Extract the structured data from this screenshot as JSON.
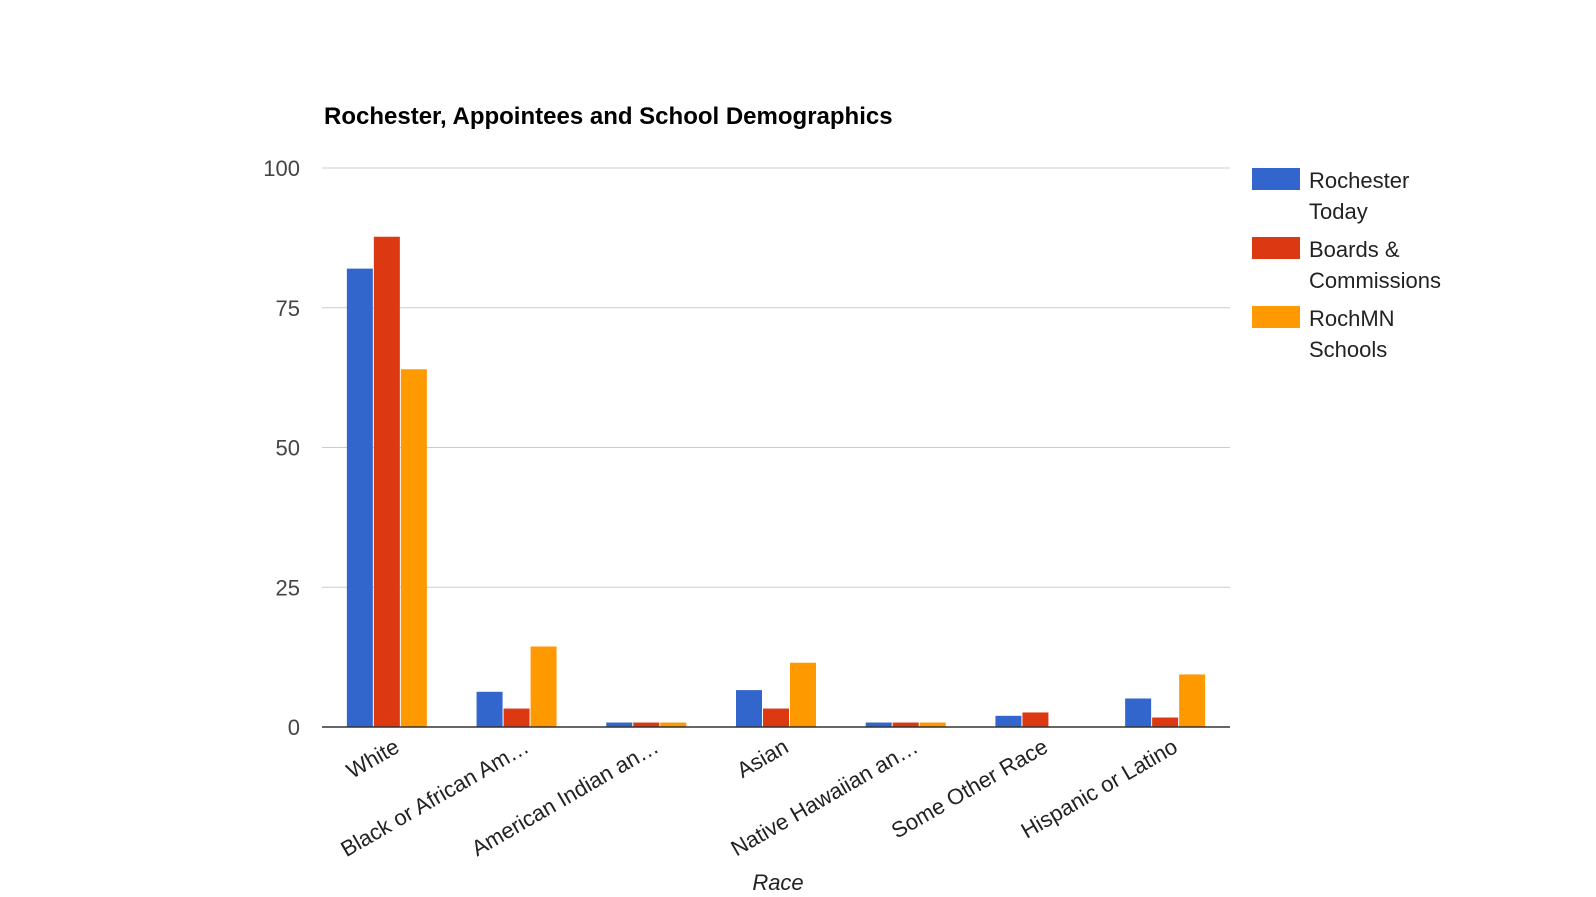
{
  "chart_data": {
    "type": "bar",
    "title": "Rochester, Appointees and School Demographics",
    "xlabel": "Race",
    "ylabel": "",
    "ylim": [
      0,
      100
    ],
    "yticks": [
      0,
      25,
      50,
      75,
      100
    ],
    "grid": true,
    "legend_position": "right",
    "categories": [
      "White",
      "Black or African Am…",
      "American Indian an…",
      "Asian",
      "Native Hawaiian an…",
      "Some Other Race",
      "Hispanic or Latino"
    ],
    "series": [
      {
        "name": "Rochester Today",
        "color": "#3366cc",
        "values": [
          82,
          6.3,
          0.8,
          6.6,
          0.8,
          2.0,
          5.1
        ]
      },
      {
        "name": "Boards & Commissions",
        "color": "#dc3912",
        "values": [
          87.7,
          3.3,
          0.8,
          3.3,
          0.8,
          2.6,
          1.7
        ]
      },
      {
        "name": "RochMN Schools",
        "color": "#ff9900",
        "values": [
          64,
          14.4,
          0.8,
          11.5,
          0.8,
          0,
          9.4
        ]
      }
    ]
  }
}
